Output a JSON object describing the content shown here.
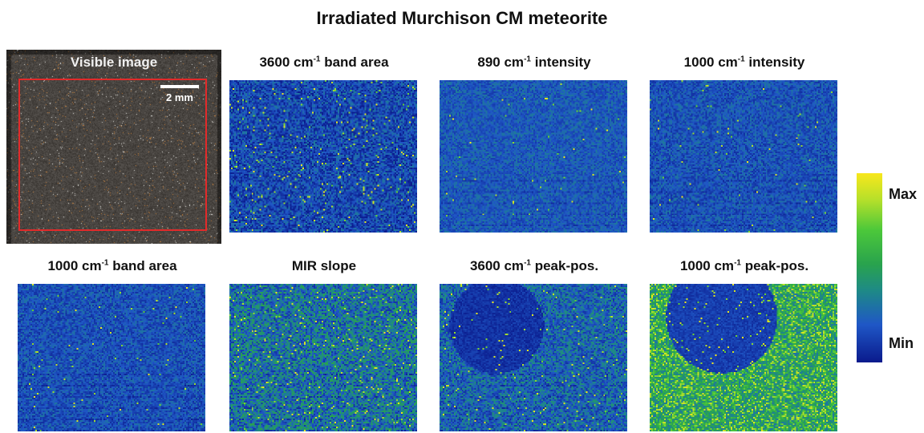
{
  "title": "Irradiated Murchison CM meteorite",
  "visible_panel": {
    "label": "Visible image",
    "scale_label": "2 mm"
  },
  "panels": [
    {
      "pre": "3600 cm",
      "sup": "-1",
      "post": " band area"
    },
    {
      "pre": "890 cm",
      "sup": "-1",
      "post": " intensity"
    },
    {
      "pre": "1000 cm",
      "sup": "-1",
      "post": " intensity"
    },
    {
      "pre": "1000 cm",
      "sup": "-1",
      "post": " band area"
    },
    {
      "pre": "MIR slope",
      "sup": "",
      "post": ""
    },
    {
      "pre": "3600 cm",
      "sup": "-1",
      "post": " peak-pos."
    },
    {
      "pre": "1000 cm",
      "sup": "-1",
      "post": " peak-pos."
    }
  ],
  "colorbar": {
    "max_label": "Max",
    "min_label": "Min",
    "colors": [
      "#f8e71c",
      "#4cc83a",
      "#1e8a86",
      "#1f57c6",
      "#0a1a8c"
    ]
  },
  "roi_color": "#e22a2a"
}
